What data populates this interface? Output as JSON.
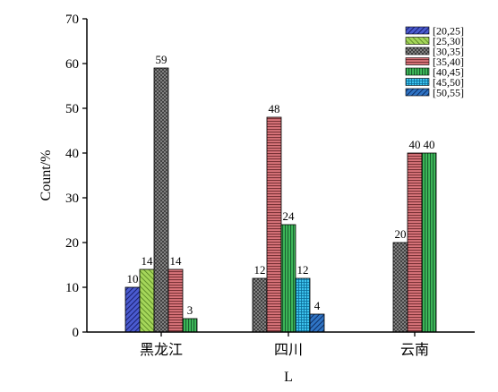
{
  "chart_data": {
    "type": "bar",
    "title": "",
    "xlabel": "L",
    "ylabel": "Count/%",
    "ylim": [
      0,
      70
    ],
    "yticks": [
      0,
      10,
      20,
      30,
      40,
      50,
      60,
      70
    ],
    "categories": [
      "黑龙江",
      "四川",
      "云南"
    ],
    "legend_position": "top-right",
    "grid": false,
    "series": [
      {
        "name": "[20,25]",
        "values": [
          10,
          null,
          null
        ],
        "labels": [
          "10",
          null,
          null
        ],
        "color": "#2b3aa8",
        "pattern": "diag-blue"
      },
      {
        "name": "[25,30]",
        "values": [
          14,
          null,
          null
        ],
        "labels": [
          "14",
          null,
          null
        ],
        "color": "#8ec63f",
        "pattern": "diag-green"
      },
      {
        "name": "[30,35]",
        "values": [
          59,
          12,
          20
        ],
        "labels": [
          "59",
          "12",
          "20"
        ],
        "color": "#8a8a8a",
        "pattern": "cross-gray"
      },
      {
        "name": "[35,40]",
        "values": [
          14,
          48,
          40
        ],
        "labels": [
          "14",
          "48",
          "40"
        ],
        "color": "#c85a5f",
        "pattern": "hlines-red"
      },
      {
        "name": "[40,45]",
        "values": [
          3,
          24,
          40
        ],
        "labels": [
          "3",
          "24",
          "40"
        ],
        "color": "#2f9e4a",
        "pattern": "vlines-green"
      },
      {
        "name": "[45,50]",
        "values": [
          null,
          12,
          null
        ],
        "labels": [
          null,
          "12",
          null
        ],
        "color": "#1ea7d6",
        "pattern": "grid-cyan"
      },
      {
        "name": "[50,55]",
        "values": [
          null,
          4,
          null
        ],
        "labels": [
          null,
          "4",
          null
        ],
        "color": "#1f5fa8",
        "pattern": "diag-navy"
      }
    ]
  }
}
